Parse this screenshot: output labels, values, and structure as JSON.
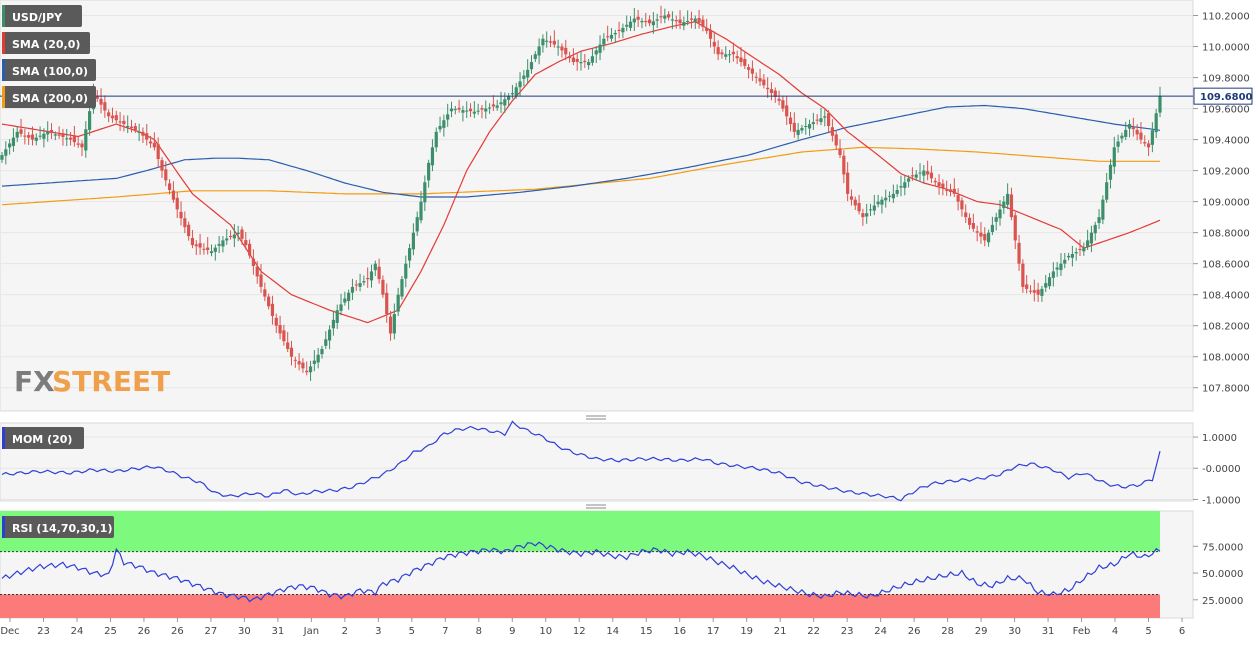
{
  "colors": {
    "up": "#3d8f6c",
    "down": "#d9534f",
    "sma20": "#e53935",
    "sma100": "#2a5db0",
    "sma200": "#f39c12",
    "mom": "#2f3fd6",
    "rsi": "#2f3fd6",
    "rsi_overbought_zone": "#7dfa7d",
    "rsi_oversold_zone": "#fb7b7b",
    "panel_bg": "#f5f5f5",
    "price_tag_bg": "#ffffff"
  },
  "logo_text": {
    "fx": "FX",
    "street": "STREET"
  },
  "chart_data": [
    {
      "type": "candlestick",
      "symbol": "USD/JPY",
      "legend": [
        "USD/JPY",
        "SMA (20,0)",
        "SMA (100,0)",
        "SMA (200,0)"
      ],
      "ylim": [
        107.65,
        110.3
      ],
      "y_ticks": [
        "110.2000",
        "110.0000",
        "109.8000",
        "109.6000",
        "109.4000",
        "109.2000",
        "109.0000",
        "108.8000",
        "108.6000",
        "108.4000",
        "108.2000",
        "108.0000",
        "107.8000"
      ],
      "last_price": "109.6800",
      "x_ticks": [
        "Dec",
        "23",
        "24",
        "25",
        "26",
        "26",
        "27",
        "30",
        "31",
        "Jan",
        "2",
        "3",
        "5",
        "7",
        "8",
        "9",
        "10",
        "12",
        "14",
        "15",
        "16",
        "17",
        "19",
        "21",
        "22",
        "23",
        "24",
        "26",
        "28",
        "29",
        "30",
        "31",
        "Feb",
        "4",
        "5",
        "6"
      ],
      "price_anchors": [
        [
          0,
          109.3
        ],
        [
          4,
          109.45
        ],
        [
          8,
          109.4
        ],
        [
          12,
          109.45
        ],
        [
          18,
          109.4
        ],
        [
          21,
          109.35
        ],
        [
          24,
          109.7
        ],
        [
          28,
          109.55
        ],
        [
          32,
          109.5
        ],
        [
          36,
          109.45
        ],
        [
          40,
          109.35
        ],
        [
          42,
          109.2
        ],
        [
          46,
          108.95
        ],
        [
          50,
          108.72
        ],
        [
          55,
          108.68
        ],
        [
          58,
          108.75
        ],
        [
          62,
          108.8
        ],
        [
          64,
          108.72
        ],
        [
          68,
          108.45
        ],
        [
          72,
          108.2
        ],
        [
          76,
          108.0
        ],
        [
          80,
          107.9
        ],
        [
          84,
          108.05
        ],
        [
          88,
          108.3
        ],
        [
          92,
          108.45
        ],
        [
          96,
          108.5
        ],
        [
          98,
          108.6
        ],
        [
          100,
          108.4
        ],
        [
          102,
          108.15
        ],
        [
          104,
          108.4
        ],
        [
          106,
          108.6
        ],
        [
          110,
          109.0
        ],
        [
          112,
          109.25
        ],
        [
          114,
          109.45
        ],
        [
          118,
          109.6
        ],
        [
          124,
          109.58
        ],
        [
          130,
          109.62
        ],
        [
          134,
          109.7
        ],
        [
          138,
          109.85
        ],
        [
          142,
          110.05
        ],
        [
          146,
          110.0
        ],
        [
          150,
          109.9
        ],
        [
          154,
          109.9
        ],
        [
          158,
          110.05
        ],
        [
          162,
          110.1
        ],
        [
          166,
          110.18
        ],
        [
          170,
          110.15
        ],
        [
          174,
          110.2
        ],
        [
          178,
          110.15
        ],
        [
          182,
          110.18
        ],
        [
          185,
          110.1
        ],
        [
          188,
          109.95
        ],
        [
          192,
          109.95
        ],
        [
          196,
          109.85
        ],
        [
          200,
          109.75
        ],
        [
          204,
          109.65
        ],
        [
          208,
          109.45
        ],
        [
          212,
          109.5
        ],
        [
          216,
          109.55
        ],
        [
          220,
          109.3
        ],
        [
          222,
          109.05
        ],
        [
          226,
          108.9
        ],
        [
          230,
          109.0
        ],
        [
          234,
          109.05
        ],
        [
          238,
          109.15
        ],
        [
          242,
          109.2
        ],
        [
          246,
          109.1
        ],
        [
          250,
          109.05
        ],
        [
          254,
          108.85
        ],
        [
          258,
          108.75
        ],
        [
          262,
          108.95
        ],
        [
          264,
          109.05
        ],
        [
          266,
          108.75
        ],
        [
          268,
          108.45
        ],
        [
          272,
          108.4
        ],
        [
          276,
          108.55
        ],
        [
          280,
          108.65
        ],
        [
          284,
          108.7
        ],
        [
          288,
          108.9
        ],
        [
          292,
          109.35
        ],
        [
          296,
          109.5
        ],
        [
          299,
          109.4
        ],
        [
          301,
          109.35
        ],
        [
          304,
          109.68
        ]
      ],
      "sma20_anchors": [
        [
          0,
          109.5
        ],
        [
          20,
          109.42
        ],
        [
          30,
          109.5
        ],
        [
          36,
          109.45
        ],
        [
          40,
          109.4
        ],
        [
          50,
          109.05
        ],
        [
          60,
          108.85
        ],
        [
          68,
          108.55
        ],
        [
          76,
          108.4
        ],
        [
          86,
          108.3
        ],
        [
          96,
          108.22
        ],
        [
          104,
          108.3
        ],
        [
          110,
          108.55
        ],
        [
          116,
          108.85
        ],
        [
          122,
          109.2
        ],
        [
          128,
          109.45
        ],
        [
          134,
          109.65
        ],
        [
          140,
          109.82
        ],
        [
          146,
          109.9
        ],
        [
          152,
          109.97
        ],
        [
          160,
          110.02
        ],
        [
          168,
          110.08
        ],
        [
          176,
          110.13
        ],
        [
          182,
          110.16
        ],
        [
          190,
          110.05
        ],
        [
          196,
          109.95
        ],
        [
          204,
          109.82
        ],
        [
          210,
          109.7
        ],
        [
          216,
          109.6
        ],
        [
          222,
          109.45
        ],
        [
          230,
          109.3
        ],
        [
          236,
          109.18
        ],
        [
          242,
          109.12
        ],
        [
          248,
          109.08
        ],
        [
          256,
          109.0
        ],
        [
          262,
          108.98
        ],
        [
          270,
          108.9
        ],
        [
          278,
          108.82
        ],
        [
          284,
          108.7
        ],
        [
          290,
          108.75
        ],
        [
          296,
          108.8
        ],
        [
          304,
          108.88
        ]
      ],
      "sma100_anchors": [
        [
          0,
          109.1
        ],
        [
          30,
          109.15
        ],
        [
          38,
          109.2
        ],
        [
          48,
          109.27
        ],
        [
          56,
          109.28
        ],
        [
          62,
          109.28
        ],
        [
          70,
          109.27
        ],
        [
          80,
          109.2
        ],
        [
          90,
          109.12
        ],
        [
          100,
          109.06
        ],
        [
          110,
          109.03
        ],
        [
          122,
          109.03
        ],
        [
          136,
          109.06
        ],
        [
          150,
          109.1
        ],
        [
          164,
          109.15
        ],
        [
          180,
          109.22
        ],
        [
          196,
          109.3
        ],
        [
          210,
          109.4
        ],
        [
          222,
          109.48
        ],
        [
          236,
          109.55
        ],
        [
          248,
          109.61
        ],
        [
          258,
          109.62
        ],
        [
          268,
          109.6
        ],
        [
          280,
          109.55
        ],
        [
          292,
          109.5
        ],
        [
          304,
          109.46
        ]
      ],
      "sma200_anchors": [
        [
          0,
          108.98
        ],
        [
          30,
          109.03
        ],
        [
          50,
          109.07
        ],
        [
          70,
          109.07
        ],
        [
          90,
          109.05
        ],
        [
          110,
          109.05
        ],
        [
          140,
          109.08
        ],
        [
          170,
          109.15
        ],
        [
          190,
          109.24
        ],
        [
          210,
          109.32
        ],
        [
          226,
          109.35
        ],
        [
          240,
          109.34
        ],
        [
          256,
          109.32
        ],
        [
          272,
          109.29
        ],
        [
          288,
          109.26
        ],
        [
          304,
          109.26
        ]
      ]
    },
    {
      "type": "line",
      "name": "MOM (20)",
      "ylim": [
        -1.05,
        1.45
      ],
      "y_ticks": [
        "1.0000",
        "-0.0000",
        "-1.0000"
      ],
      "anchors": [
        [
          0,
          -0.2
        ],
        [
          10,
          -0.1
        ],
        [
          18,
          -0.15
        ],
        [
          24,
          -0.05
        ],
        [
          30,
          -0.1
        ],
        [
          36,
          0.0
        ],
        [
          40,
          0.05
        ],
        [
          44,
          -0.1
        ],
        [
          48,
          -0.3
        ],
        [
          52,
          -0.45
        ],
        [
          56,
          -0.8
        ],
        [
          60,
          -0.9
        ],
        [
          66,
          -0.8
        ],
        [
          70,
          -0.9
        ],
        [
          74,
          -0.7
        ],
        [
          78,
          -0.85
        ],
        [
          82,
          -0.75
        ],
        [
          88,
          -0.7
        ],
        [
          92,
          -0.6
        ],
        [
          96,
          -0.4
        ],
        [
          100,
          -0.2
        ],
        [
          104,
          0.1
        ],
        [
          108,
          0.5
        ],
        [
          112,
          0.7
        ],
        [
          116,
          1.1
        ],
        [
          120,
          1.25
        ],
        [
          124,
          1.3
        ],
        [
          128,
          1.2
        ],
        [
          132,
          1.1
        ],
        [
          134,
          1.45
        ],
        [
          138,
          1.2
        ],
        [
          142,
          1.0
        ],
        [
          146,
          0.7
        ],
        [
          150,
          0.5
        ],
        [
          156,
          0.3
        ],
        [
          162,
          0.25
        ],
        [
          168,
          0.3
        ],
        [
          172,
          0.3
        ],
        [
          178,
          0.25
        ],
        [
          184,
          0.3
        ],
        [
          188,
          0.15
        ],
        [
          194,
          0.05
        ],
        [
          198,
          0.0
        ],
        [
          204,
          -0.15
        ],
        [
          210,
          -0.45
        ],
        [
          216,
          -0.6
        ],
        [
          222,
          -0.75
        ],
        [
          228,
          -0.85
        ],
        [
          232,
          -0.9
        ],
        [
          236,
          -1.0
        ],
        [
          240,
          -0.7
        ],
        [
          244,
          -0.5
        ],
        [
          250,
          -0.4
        ],
        [
          256,
          -0.35
        ],
        [
          262,
          -0.2
        ],
        [
          266,
          0.05
        ],
        [
          270,
          0.15
        ],
        [
          276,
          -0.05
        ],
        [
          280,
          -0.3
        ],
        [
          284,
          -0.15
        ],
        [
          290,
          -0.5
        ],
        [
          294,
          -0.6
        ],
        [
          298,
          -0.55
        ],
        [
          300,
          -0.45
        ],
        [
          302,
          -0.35
        ],
        [
          304,
          0.5
        ]
      ]
    },
    {
      "type": "line",
      "name": "RSI (14,70,30,1)",
      "ylim": [
        8,
        108
      ],
      "y_ticks": [
        "75.0000",
        "50.0000",
        "25.0000"
      ],
      "overbought": 70,
      "oversold": 30,
      "anchors": [
        [
          0,
          45
        ],
        [
          6,
          52
        ],
        [
          10,
          56
        ],
        [
          16,
          58
        ],
        [
          20,
          55
        ],
        [
          24,
          50
        ],
        [
          28,
          48
        ],
        [
          30,
          72
        ],
        [
          32,
          60
        ],
        [
          36,
          56
        ],
        [
          40,
          50
        ],
        [
          46,
          45
        ],
        [
          50,
          40
        ],
        [
          54,
          35
        ],
        [
          58,
          30
        ],
        [
          62,
          28
        ],
        [
          66,
          25
        ],
        [
          70,
          30
        ],
        [
          74,
          35
        ],
        [
          78,
          38
        ],
        [
          82,
          36
        ],
        [
          86,
          30
        ],
        [
          90,
          28
        ],
        [
          94,
          34
        ],
        [
          98,
          32
        ],
        [
          100,
          40
        ],
        [
          104,
          44
        ],
        [
          108,
          52
        ],
        [
          112,
          58
        ],
        [
          116,
          65
        ],
        [
          120,
          68
        ],
        [
          124,
          70
        ],
        [
          128,
          72
        ],
        [
          132,
          70
        ],
        [
          136,
          75
        ],
        [
          140,
          78
        ],
        [
          144,
          74
        ],
        [
          148,
          70
        ],
        [
          152,
          68
        ],
        [
          156,
          70
        ],
        [
          160,
          66
        ],
        [
          164,
          65
        ],
        [
          168,
          70
        ],
        [
          172,
          72
        ],
        [
          176,
          68
        ],
        [
          180,
          70
        ],
        [
          184,
          66
        ],
        [
          188,
          60
        ],
        [
          192,
          55
        ],
        [
          196,
          48
        ],
        [
          200,
          42
        ],
        [
          204,
          38
        ],
        [
          208,
          34
        ],
        [
          212,
          30
        ],
        [
          216,
          28
        ],
        [
          220,
          32
        ],
        [
          224,
          30
        ],
        [
          228,
          28
        ],
        [
          232,
          33
        ],
        [
          236,
          38
        ],
        [
          240,
          42
        ],
        [
          244,
          45
        ],
        [
          248,
          48
        ],
        [
          252,
          50
        ],
        [
          256,
          40
        ],
        [
          260,
          38
        ],
        [
          264,
          45
        ],
        [
          268,
          45
        ],
        [
          272,
          32
        ],
        [
          276,
          30
        ],
        [
          280,
          34
        ],
        [
          284,
          45
        ],
        [
          288,
          55
        ],
        [
          292,
          58
        ],
        [
          296,
          68
        ],
        [
          300,
          65
        ],
        [
          304,
          72
        ]
      ]
    }
  ]
}
